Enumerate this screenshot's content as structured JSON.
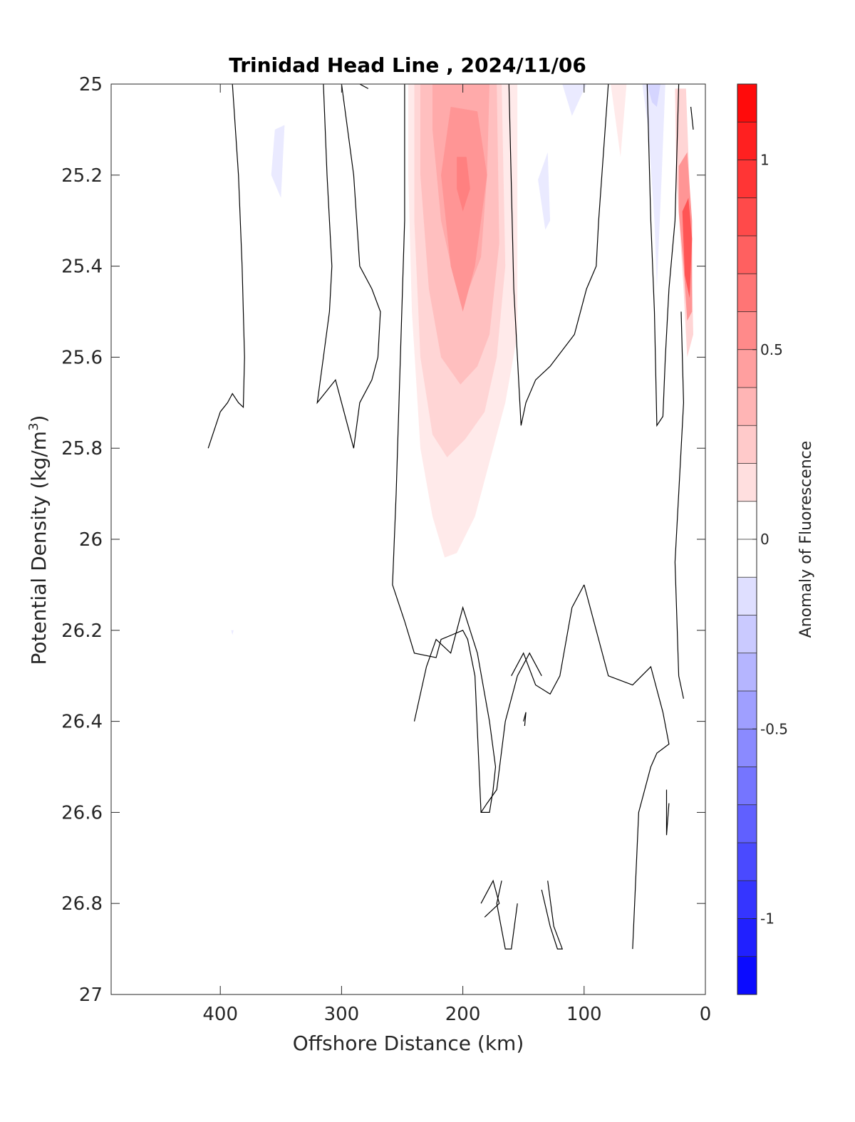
{
  "chart_data": {
    "type": "heatmap",
    "title": "Trinidad Head Line , 2024/11/06",
    "xlabel": "Offshore Distance (km)",
    "ylabel": "Potential Density (kg/m³)",
    "ylabel_main": "Potential Density (kg/m",
    "ylabel_sup": "3",
    "ylabel_end": ")",
    "xlim": [
      490,
      0
    ],
    "ylim": [
      25,
      27
    ],
    "x_reversed": true,
    "y_reversed": true,
    "x_ticks": [
      400,
      300,
      200,
      100,
      0
    ],
    "x_tick_labels": [
      "400",
      "300",
      "200",
      "100",
      "0"
    ],
    "y_ticks": [
      25,
      25.2,
      25.4,
      25.6,
      25.8,
      26,
      26.2,
      26.4,
      26.6,
      26.8,
      27
    ],
    "y_tick_labels": [
      "25",
      "25.2",
      "25.4",
      "25.6",
      "25.8",
      "26",
      "26.2",
      "26.4",
      "26.6",
      "26.8",
      "27"
    ],
    "colorbar": {
      "label": "Anomaly of Fluorescence",
      "range": [
        -1.2,
        1.2
      ],
      "step": 0.1,
      "ticks": [
        1,
        0.5,
        0,
        -0.5,
        -1
      ],
      "tick_labels": [
        "1",
        "0.5",
        "0",
        "-0.5",
        "-1"
      ],
      "color_pos": "#ff0000",
      "color_neg": "#0000ff",
      "color_mid": "#ffffff"
    },
    "filled_regions": [
      {
        "name": "offshore-pink-plume",
        "level": 0.1,
        "points": [
          [
            245,
            25.0
          ],
          [
            155,
            25.0
          ],
          [
            155,
            25.55
          ],
          [
            165,
            25.7
          ],
          [
            180,
            25.85
          ],
          [
            190,
            25.95
          ],
          [
            205,
            26.03
          ],
          [
            215,
            26.04
          ],
          [
            225,
            25.95
          ],
          [
            235,
            25.8
          ],
          [
            242,
            25.5
          ],
          [
            245,
            25.2
          ]
        ]
      },
      {
        "name": "offshore-plume-mid",
        "level": 0.2,
        "points": [
          [
            240,
            25.0
          ],
          [
            168,
            25.0
          ],
          [
            165,
            25.4
          ],
          [
            172,
            25.6
          ],
          [
            182,
            25.72
          ],
          [
            198,
            25.78
          ],
          [
            213,
            25.82
          ],
          [
            225,
            25.77
          ],
          [
            235,
            25.6
          ],
          [
            240,
            25.3
          ]
        ]
      },
      {
        "name": "offshore-plume-inner",
        "level": 0.3,
        "points": [
          [
            235,
            25.0
          ],
          [
            172,
            25.0
          ],
          [
            170,
            25.35
          ],
          [
            178,
            25.55
          ],
          [
            188,
            25.62
          ],
          [
            202,
            25.66
          ],
          [
            218,
            25.6
          ],
          [
            228,
            25.45
          ],
          [
            235,
            25.2
          ]
        ]
      },
      {
        "name": "offshore-plume-core",
        "level": 0.4,
        "points": [
          [
            225,
            25.0
          ],
          [
            178,
            25.0
          ],
          [
            180,
            25.2
          ],
          [
            185,
            25.38
          ],
          [
            195,
            25.45
          ],
          [
            207,
            25.43
          ],
          [
            218,
            25.3
          ],
          [
            225,
            25.1
          ]
        ]
      },
      {
        "name": "offshore-plume-peak",
        "level": 0.5,
        "points": [
          [
            210,
            25.05
          ],
          [
            188,
            25.06
          ],
          [
            180,
            25.2
          ],
          [
            190,
            25.4
          ],
          [
            200,
            25.5
          ],
          [
            210,
            25.4
          ],
          [
            218,
            25.2
          ]
        ]
      },
      {
        "name": "offshore-plume-max",
        "level": 0.6,
        "points": [
          [
            205,
            25.16
          ],
          [
            197,
            25.16
          ],
          [
            194,
            25.23
          ],
          [
            200,
            25.28
          ],
          [
            205,
            25.23
          ]
        ]
      },
      {
        "name": "nearshore-red-band",
        "level": 0.2,
        "points": [
          [
            25,
            25.01
          ],
          [
            16,
            25.01
          ],
          [
            12,
            25.3
          ],
          [
            10,
            25.55
          ],
          [
            15,
            25.6
          ],
          [
            18,
            25.45
          ],
          [
            24,
            25.2
          ]
        ]
      },
      {
        "name": "nearshore-red-mid",
        "level": 0.5,
        "points": [
          [
            22,
            25.18
          ],
          [
            15,
            25.15
          ],
          [
            11,
            25.3
          ],
          [
            11,
            25.5
          ],
          [
            15,
            25.52
          ],
          [
            18,
            25.4
          ],
          [
            22,
            25.28
          ]
        ]
      },
      {
        "name": "nearshore-red-core",
        "level": 0.8,
        "points": [
          [
            19,
            25.28
          ],
          [
            14,
            25.25
          ],
          [
            11,
            25.34
          ],
          [
            13,
            25.47
          ],
          [
            17,
            25.42
          ]
        ]
      },
      {
        "name": "nearshore-pink-sliver",
        "level": 0.1,
        "points": [
          [
            78,
            25.0
          ],
          [
            65,
            25.0
          ],
          [
            70,
            25.16
          ]
        ]
      },
      {
        "name": "blue-patch-a",
        "level": -0.1,
        "points": [
          [
            355,
            25.1
          ],
          [
            347,
            25.09
          ],
          [
            350,
            25.25
          ],
          [
            358,
            25.2
          ]
        ]
      },
      {
        "name": "blue-patch-b",
        "level": -0.1,
        "points": [
          [
            130,
            25.15
          ],
          [
            138,
            25.21
          ],
          [
            132,
            25.32
          ],
          [
            128,
            25.3
          ]
        ]
      },
      {
        "name": "blue-patch-c",
        "level": -0.1,
        "points": [
          [
            118,
            25.0
          ],
          [
            98,
            25.0
          ],
          [
            110,
            25.07
          ]
        ]
      },
      {
        "name": "blue-band-nearshore",
        "level": -0.1,
        "points": [
          [
            52,
            25.0
          ],
          [
            33,
            25.0
          ],
          [
            36,
            25.2
          ],
          [
            40,
            25.45
          ],
          [
            42,
            25.3
          ],
          [
            47,
            25.1
          ]
        ]
      },
      {
        "name": "blue-band-nearshore-core",
        "level": -0.2,
        "points": [
          [
            48,
            25.0
          ],
          [
            37,
            25.0
          ],
          [
            40,
            25.05
          ],
          [
            44,
            25.04
          ]
        ]
      },
      {
        "name": "blue-dot",
        "level": -0.1,
        "points": [
          [
            391,
            26.2
          ],
          [
            389,
            26.2
          ],
          [
            390,
            26.21
          ]
        ]
      }
    ],
    "contour_lines": [
      [
        [
          410,
          25.8
        ],
        [
          400,
          25.72
        ],
        [
          394,
          25.7
        ],
        [
          390,
          25.68
        ],
        [
          385,
          25.7
        ],
        [
          381,
          25.71
        ],
        [
          380,
          25.6
        ],
        [
          382,
          25.4
        ],
        [
          385,
          25.2
        ],
        [
          390,
          25.0
        ]
      ],
      [
        [
          315,
          25.0
        ],
        [
          312,
          25.2
        ],
        [
          308,
          25.4
        ],
        [
          310,
          25.5
        ],
        [
          315,
          25.6
        ],
        [
          320,
          25.7
        ],
        [
          305,
          25.65
        ],
        [
          295,
          25.75
        ],
        [
          290,
          25.8
        ],
        [
          285,
          25.7
        ],
        [
          275,
          25.65
        ],
        [
          270,
          25.6
        ],
        [
          268,
          25.5
        ],
        [
          275,
          25.45
        ],
        [
          285,
          25.4
        ],
        [
          290,
          25.2
        ],
        [
          300,
          25.0
        ]
      ],
      [
        [
          285,
          25.0
        ],
        [
          278,
          25.01
        ]
      ],
      [
        [
          248,
          25.0
        ],
        [
          248,
          25.3
        ],
        [
          255,
          25.9
        ],
        [
          258,
          26.1
        ],
        [
          248,
          26.18
        ],
        [
          240,
          26.25
        ],
        [
          222,
          26.26
        ],
        [
          218,
          26.22
        ],
        [
          200,
          26.2
        ],
        [
          196,
          26.22
        ],
        [
          190,
          26.3
        ],
        [
          185,
          26.6
        ],
        [
          178,
          26.6
        ],
        [
          175,
          26.55
        ],
        [
          173,
          26.5
        ],
        [
          175,
          26.46
        ],
        [
          178,
          26.4
        ],
        [
          188,
          26.25
        ],
        [
          200,
          26.15
        ],
        [
          210,
          26.25
        ],
        [
          222,
          26.22
        ],
        [
          230,
          26.28
        ],
        [
          240,
          26.4
        ]
      ],
      [
        [
          162,
          25.0
        ],
        [
          158,
          25.45
        ],
        [
          152,
          25.75
        ],
        [
          148,
          25.7
        ],
        [
          140,
          25.65
        ],
        [
          128,
          25.62
        ],
        [
          108,
          25.55
        ],
        [
          98,
          25.45
        ],
        [
          90,
          25.4
        ],
        [
          88,
          25.3
        ],
        [
          80,
          25.0
        ]
      ],
      [
        [
          135,
          26.3
        ],
        [
          145,
          26.25
        ],
        [
          155,
          26.3
        ],
        [
          165,
          26.4
        ],
        [
          172,
          26.55
        ],
        [
          180,
          26.58
        ],
        [
          185,
          26.6
        ]
      ],
      [
        [
          100,
          26.1
        ],
        [
          110,
          26.15
        ],
        [
          120,
          26.3
        ],
        [
          128,
          26.34
        ],
        [
          140,
          26.32
        ],
        [
          150,
          26.25
        ],
        [
          160,
          26.3
        ]
      ],
      [
        [
          100,
          26.1
        ],
        [
          90,
          26.2
        ],
        [
          80,
          26.3
        ],
        [
          60,
          26.32
        ],
        [
          45,
          26.28
        ],
        [
          35,
          26.38
        ],
        [
          30,
          26.45
        ],
        [
          40,
          26.47
        ],
        [
          45,
          26.5
        ],
        [
          55,
          26.6
        ],
        [
          60,
          26.9
        ]
      ],
      [
        [
          48,
          25.0
        ],
        [
          45,
          25.3
        ],
        [
          42,
          25.5
        ],
        [
          40,
          25.75
        ],
        [
          35,
          25.73
        ],
        [
          33,
          25.6
        ],
        [
          30,
          25.45
        ],
        [
          25,
          25.3
        ],
        [
          22,
          25.0
        ]
      ],
      [
        [
          20,
          25.5
        ],
        [
          18,
          25.7
        ],
        [
          20,
          25.8
        ],
        [
          25,
          26.05
        ],
        [
          22,
          26.3
        ],
        [
          18,
          26.35
        ]
      ],
      [
        [
          12,
          25.05
        ],
        [
          10,
          25.1
        ]
      ],
      [
        [
          30,
          26.58
        ],
        [
          32,
          26.65
        ],
        [
          32,
          26.55
        ]
      ],
      [
        [
          150,
          26.4
        ],
        [
          148,
          26.38
        ],
        [
          149,
          26.41
        ]
      ],
      [
        [
          185,
          26.8
        ],
        [
          175,
          26.75
        ],
        [
          170,
          26.8
        ],
        [
          182,
          26.83
        ]
      ],
      [
        [
          168,
          26.75
        ],
        [
          172,
          26.8
        ],
        [
          165,
          26.9
        ],
        [
          160,
          26.9
        ],
        [
          155,
          26.8
        ]
      ],
      [
        [
          135,
          26.77
        ],
        [
          128,
          26.85
        ],
        [
          122,
          26.9
        ],
        [
          118,
          26.9
        ],
        [
          125,
          26.85
        ],
        [
          130,
          26.75
        ]
      ]
    ]
  }
}
